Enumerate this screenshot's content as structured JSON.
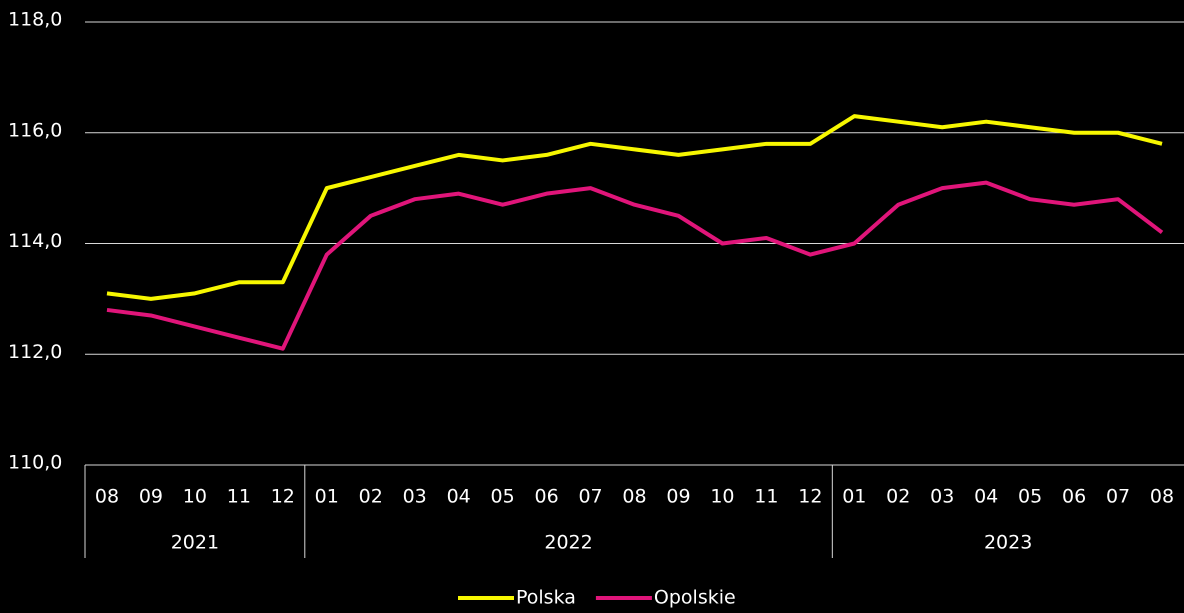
{
  "chart_data": {
    "type": "line",
    "category_groups": [
      {
        "label": "2021",
        "categories": [
          "08",
          "09",
          "10",
          "11",
          "12"
        ]
      },
      {
        "label": "2022",
        "categories": [
          "01",
          "02",
          "03",
          "04",
          "05",
          "06",
          "07",
          "08",
          "09",
          "10",
          "11",
          "12"
        ]
      },
      {
        "label": "2023",
        "categories": [
          "01",
          "02",
          "03",
          "04",
          "05",
          "06",
          "07",
          "08"
        ]
      }
    ],
    "series": [
      {
        "name": "Polska",
        "color": "#f7f700",
        "values": [
          113.1,
          113.0,
          113.1,
          113.3,
          113.3,
          115.0,
          115.2,
          115.4,
          115.6,
          115.5,
          115.6,
          115.8,
          115.7,
          115.6,
          115.7,
          115.8,
          115.8,
          116.3,
          116.2,
          116.1,
          116.2,
          116.1,
          116.0,
          116.0,
          115.8
        ]
      },
      {
        "name": "Opolskie",
        "color": "#e0157a",
        "values": [
          112.8,
          112.7,
          112.5,
          112.3,
          112.1,
          113.8,
          114.5,
          114.8,
          114.9,
          114.7,
          114.9,
          115.0,
          114.7,
          114.5,
          114.0,
          114.1,
          113.8,
          114.0,
          114.7,
          115.0,
          115.1,
          114.8,
          114.7,
          114.8,
          114.2
        ]
      }
    ],
    "ylim": [
      110,
      118
    ],
    "yticks": [
      {
        "value": 110,
        "label": "110,0"
      },
      {
        "value": 112,
        "label": "112,0"
      },
      {
        "value": 114,
        "label": "114,0"
      },
      {
        "value": 116,
        "label": "116,0"
      },
      {
        "value": 118,
        "label": "118,0"
      }
    ],
    "grid": true,
    "legend": "bottom"
  }
}
